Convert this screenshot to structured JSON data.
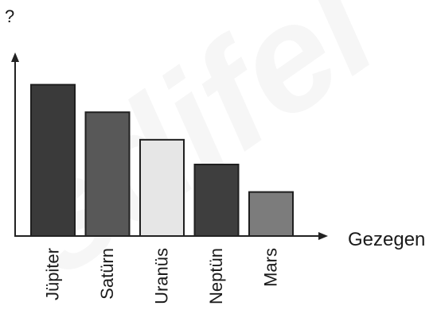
{
  "question_mark": "?",
  "chart_data": {
    "type": "bar",
    "categories": [
      "Jüpiter",
      "Satürn",
      "Uranüs",
      "Neptün",
      "Mars"
    ],
    "values": [
      5.5,
      4.5,
      3.5,
      2.6,
      1.6
    ],
    "xlabel": "Gezegen",
    "ylabel": "",
    "ylim": [
      0,
      6.5
    ],
    "grid": false,
    "bar_colors": [
      "#3a3a3a",
      "#585858",
      "#e6e6e6",
      "#3e3e3e",
      "#7c7c7c"
    ],
    "watermark_text": "sdifel"
  }
}
